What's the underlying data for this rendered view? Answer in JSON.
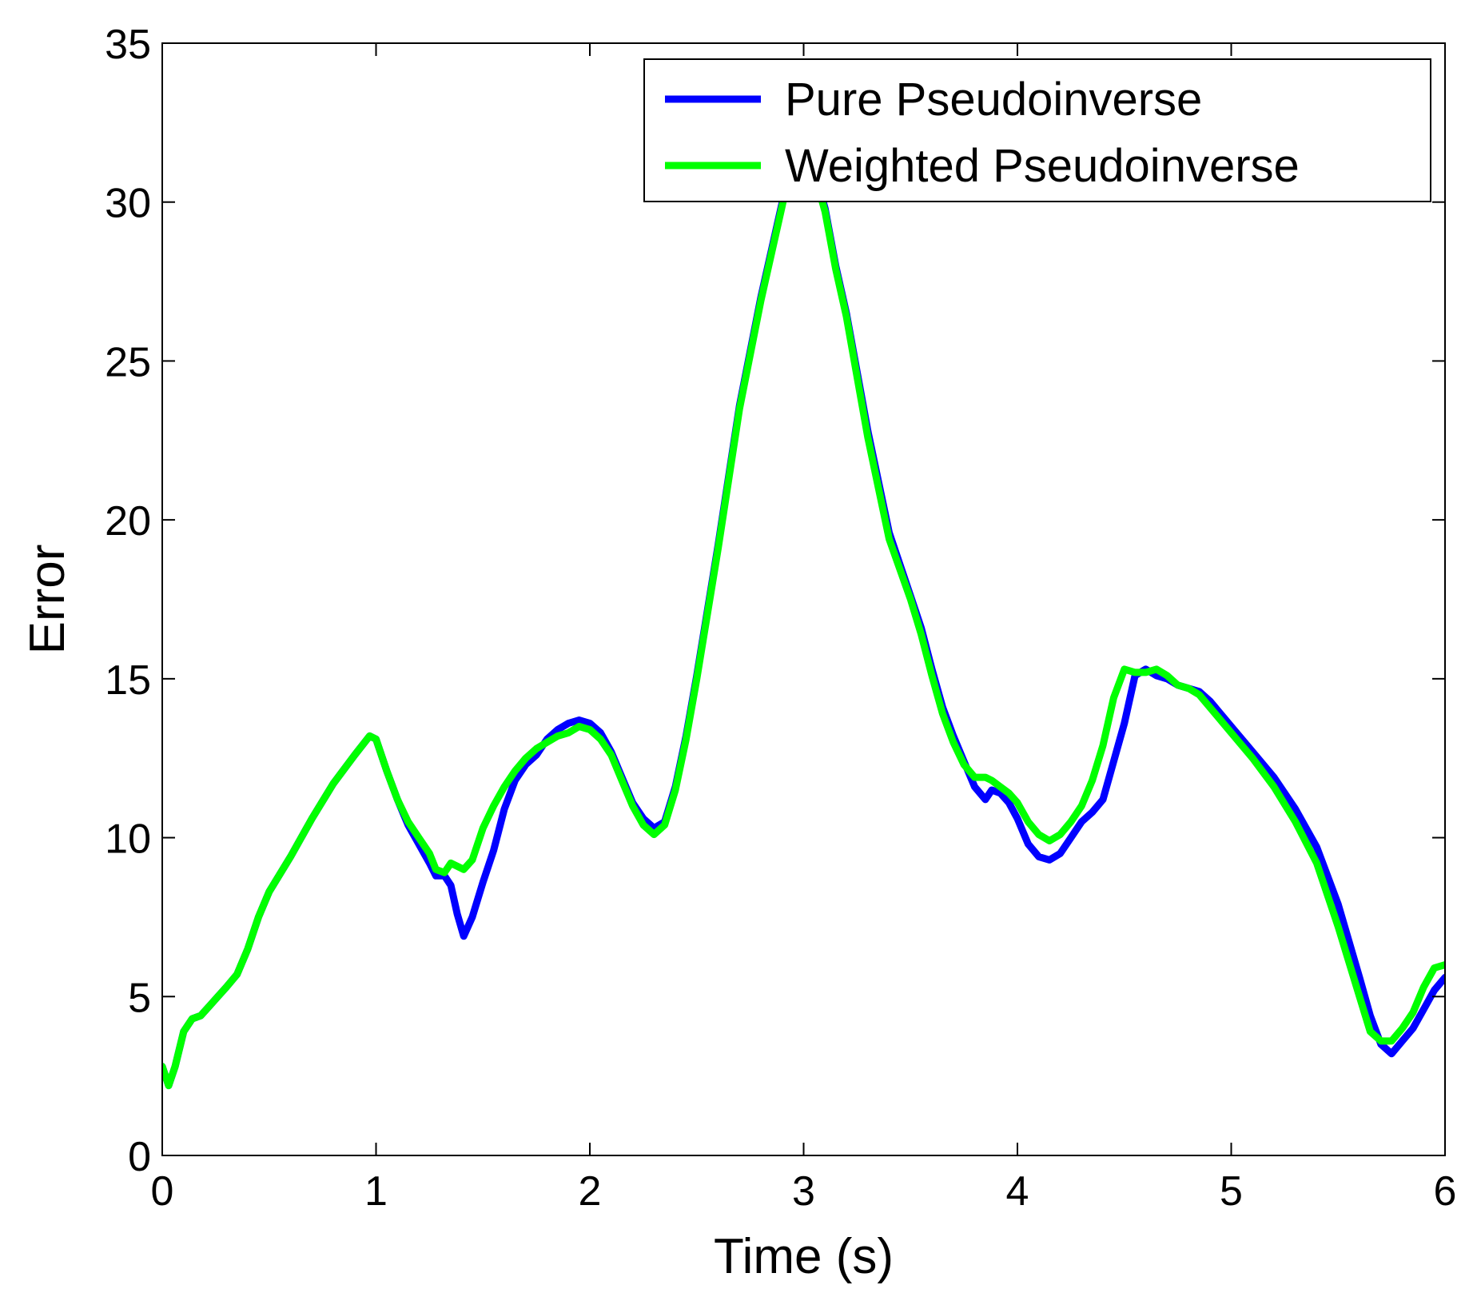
{
  "chart_data": {
    "type": "line",
    "title": "",
    "xlabel": "Time (s)",
    "ylabel": "Error",
    "xlim": [
      0,
      6
    ],
    "ylim": [
      0,
      35
    ],
    "xticks": [
      0,
      1,
      2,
      3,
      4,
      5,
      6
    ],
    "yticks": [
      0,
      5,
      10,
      15,
      20,
      25,
      30,
      35
    ],
    "grid": false,
    "legend": "top-right",
    "series": [
      {
        "name": "Pure Pseudoinverse",
        "color": "#0000ff",
        "x": [
          0.0,
          0.03,
          0.06,
          0.1,
          0.14,
          0.18,
          0.22,
          0.26,
          0.3,
          0.35,
          0.4,
          0.45,
          0.5,
          0.6,
          0.7,
          0.8,
          0.9,
          0.97,
          1.0,
          1.05,
          1.1,
          1.15,
          1.2,
          1.25,
          1.28,
          1.32,
          1.35,
          1.38,
          1.41,
          1.45,
          1.5,
          1.55,
          1.6,
          1.65,
          1.7,
          1.75,
          1.8,
          1.85,
          1.9,
          1.95,
          2.0,
          2.05,
          2.1,
          2.15,
          2.2,
          2.25,
          2.3,
          2.35,
          2.4,
          2.45,
          2.5,
          2.6,
          2.7,
          2.8,
          2.9,
          2.97,
          3.0,
          3.05,
          3.1,
          3.15,
          3.2,
          3.3,
          3.4,
          3.5,
          3.55,
          3.6,
          3.65,
          3.7,
          3.75,
          3.8,
          3.85,
          3.88,
          3.92,
          3.96,
          4.0,
          4.05,
          4.1,
          4.15,
          4.2,
          4.25,
          4.3,
          4.35,
          4.4,
          4.45,
          4.5,
          4.55,
          4.6,
          4.65,
          4.7,
          4.75,
          4.8,
          4.85,
          4.9,
          5.0,
          5.1,
          5.2,
          5.3,
          5.4,
          5.5,
          5.6,
          5.65,
          5.7,
          5.75,
          5.8,
          5.85,
          5.9,
          5.95,
          6.0
        ],
        "values": [
          2.8,
          2.2,
          2.8,
          3.9,
          4.3,
          4.4,
          4.7,
          5.0,
          5.3,
          5.7,
          6.5,
          7.5,
          8.3,
          9.4,
          10.6,
          11.7,
          12.6,
          13.2,
          13.1,
          12.1,
          11.2,
          10.4,
          9.8,
          9.2,
          8.8,
          8.8,
          8.5,
          7.6,
          6.9,
          7.5,
          8.6,
          9.6,
          10.9,
          11.8,
          12.3,
          12.6,
          13.1,
          13.4,
          13.6,
          13.7,
          13.6,
          13.3,
          12.7,
          11.9,
          11.1,
          10.6,
          10.3,
          10.5,
          11.6,
          13.2,
          15.1,
          19.2,
          23.6,
          27.0,
          30.0,
          32.3,
          31.5,
          31.0,
          29.8,
          28.0,
          26.5,
          22.8,
          19.6,
          17.6,
          16.6,
          15.3,
          14.1,
          13.2,
          12.4,
          11.6,
          11.2,
          11.5,
          11.4,
          11.1,
          10.6,
          9.8,
          9.4,
          9.3,
          9.5,
          10.0,
          10.5,
          10.8,
          11.2,
          12.4,
          13.6,
          15.1,
          15.3,
          15.1,
          15.0,
          14.8,
          14.7,
          14.6,
          14.3,
          13.5,
          12.7,
          11.9,
          10.9,
          9.7,
          7.9,
          5.6,
          4.4,
          3.5,
          3.2,
          3.6,
          4.0,
          4.6,
          5.2,
          5.6
        ]
      },
      {
        "name": "Weighted Pseudoinverse",
        "color": "#00ff00",
        "x": [
          0.0,
          0.03,
          0.06,
          0.1,
          0.14,
          0.18,
          0.22,
          0.26,
          0.3,
          0.35,
          0.4,
          0.45,
          0.5,
          0.6,
          0.7,
          0.8,
          0.9,
          0.97,
          1.0,
          1.05,
          1.1,
          1.15,
          1.2,
          1.25,
          1.28,
          1.32,
          1.35,
          1.38,
          1.41,
          1.45,
          1.5,
          1.55,
          1.6,
          1.65,
          1.7,
          1.75,
          1.8,
          1.85,
          1.9,
          1.95,
          2.0,
          2.05,
          2.1,
          2.15,
          2.2,
          2.25,
          2.3,
          2.35,
          2.4,
          2.45,
          2.5,
          2.6,
          2.7,
          2.8,
          2.9,
          2.97,
          3.0,
          3.05,
          3.1,
          3.15,
          3.2,
          3.3,
          3.4,
          3.5,
          3.55,
          3.6,
          3.65,
          3.7,
          3.75,
          3.8,
          3.85,
          3.88,
          3.92,
          3.96,
          4.0,
          4.05,
          4.1,
          4.15,
          4.2,
          4.25,
          4.3,
          4.35,
          4.4,
          4.45,
          4.5,
          4.55,
          4.6,
          4.65,
          4.7,
          4.75,
          4.8,
          4.85,
          4.9,
          5.0,
          5.1,
          5.2,
          5.3,
          5.4,
          5.5,
          5.6,
          5.65,
          5.7,
          5.75,
          5.8,
          5.85,
          5.9,
          5.95,
          6.0
        ],
        "values": [
          2.8,
          2.2,
          2.8,
          3.9,
          4.3,
          4.4,
          4.7,
          5.0,
          5.3,
          5.7,
          6.5,
          7.5,
          8.3,
          9.4,
          10.6,
          11.7,
          12.6,
          13.2,
          13.1,
          12.1,
          11.2,
          10.5,
          10.0,
          9.5,
          9.0,
          8.9,
          9.2,
          9.1,
          9.0,
          9.3,
          10.3,
          11.0,
          11.6,
          12.1,
          12.5,
          12.8,
          13.0,
          13.2,
          13.3,
          13.5,
          13.4,
          13.1,
          12.6,
          11.8,
          11.0,
          10.4,
          10.1,
          10.4,
          11.5,
          13.1,
          15.0,
          19.1,
          23.5,
          26.9,
          29.9,
          32.2,
          31.4,
          30.9,
          29.7,
          27.9,
          26.4,
          22.6,
          19.4,
          17.5,
          16.4,
          15.1,
          13.9,
          13.0,
          12.3,
          11.9,
          11.9,
          11.8,
          11.6,
          11.4,
          11.1,
          10.5,
          10.1,
          9.9,
          10.1,
          10.5,
          11.0,
          11.8,
          12.9,
          14.4,
          15.3,
          15.2,
          15.2,
          15.3,
          15.1,
          14.8,
          14.7,
          14.5,
          14.1,
          13.3,
          12.5,
          11.6,
          10.5,
          9.2,
          7.2,
          5.0,
          3.9,
          3.6,
          3.6,
          4.0,
          4.5,
          5.3,
          5.9,
          6.0
        ]
      }
    ]
  }
}
